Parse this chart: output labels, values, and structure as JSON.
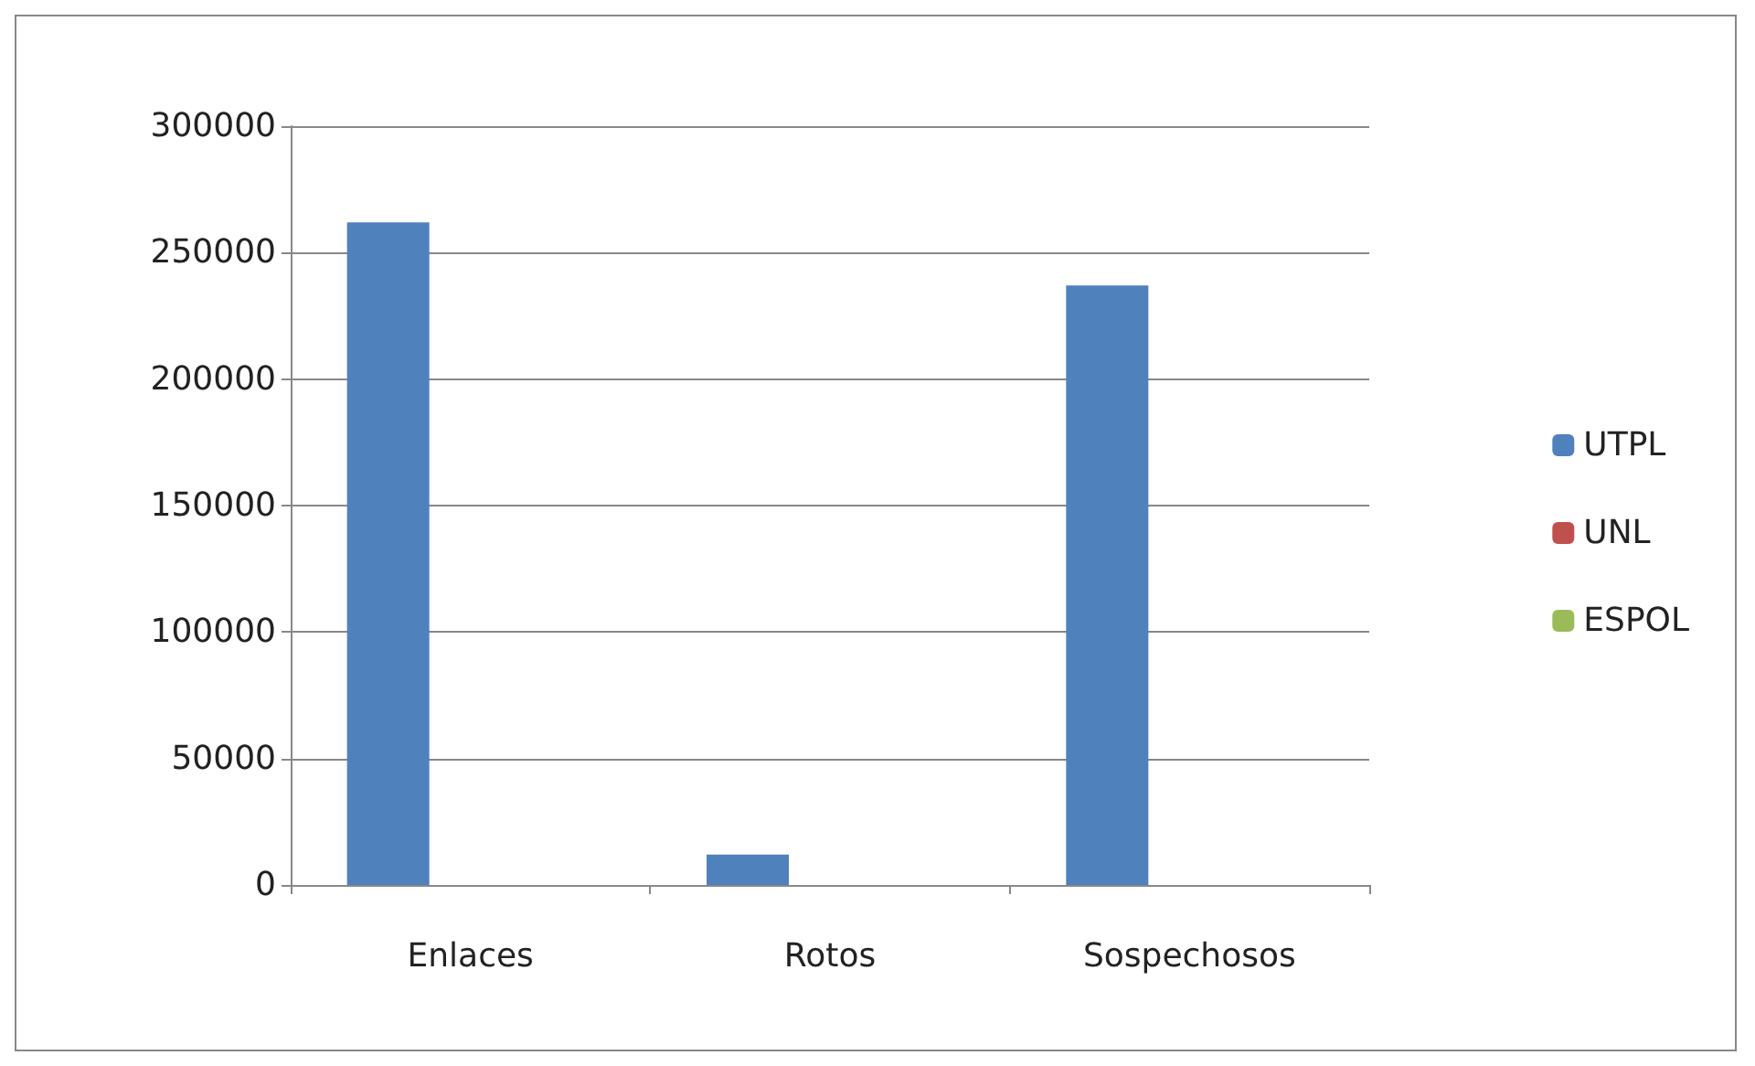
{
  "chart_data": {
    "type": "bar",
    "categories": [
      "Enlaces",
      "Rotos",
      "Sospechosos"
    ],
    "series": [
      {
        "name": "UTPL",
        "color": "#4f81bd",
        "values": [
          262000,
          12000,
          237000
        ]
      },
      {
        "name": "UNL",
        "color": "#c0504d",
        "values": [
          0,
          0,
          0
        ]
      },
      {
        "name": "ESPOL",
        "color": "#9bbb59",
        "values": [
          0,
          0,
          0
        ]
      }
    ],
    "ylim": [
      0,
      300000
    ],
    "yticks": [
      0,
      50000,
      100000,
      150000,
      200000,
      250000,
      300000
    ],
    "grid": "y",
    "legend": "right"
  }
}
